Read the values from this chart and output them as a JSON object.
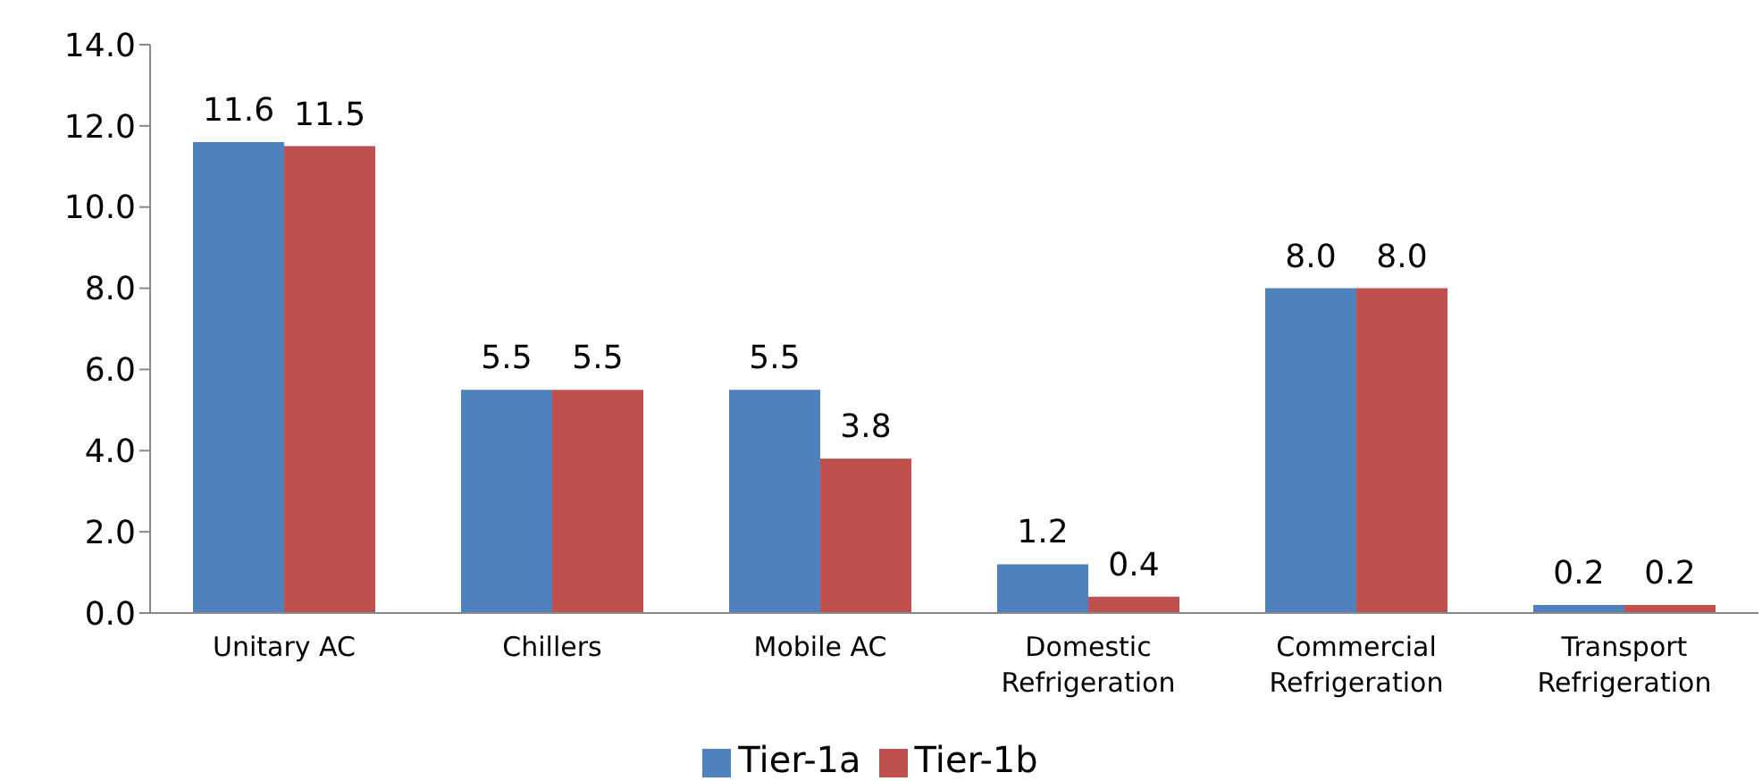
{
  "chart_data": {
    "type": "bar",
    "categories": [
      "Unitary AC",
      "Chillers",
      "Mobile AC",
      "Domestic Refrigeration",
      "Commercial Refrigeration",
      "Transport Refrigeration"
    ],
    "series": [
      {
        "name": "Tier-1a",
        "color": "#4f81bd",
        "values": [
          11.6,
          5.5,
          5.5,
          1.2,
          8.0,
          0.2
        ],
        "value_labels": [
          "11.6",
          "5.5",
          "5.5",
          "1.2",
          "8.0",
          "0.2"
        ]
      },
      {
        "name": "Tier-1b",
        "color": "#c0504d",
        "values": [
          11.5,
          5.5,
          3.8,
          0.4,
          8.0,
          0.2
        ],
        "value_labels": [
          "11.5",
          "5.5",
          "3.8",
          "0.4",
          "8.0",
          "0.2"
        ]
      }
    ],
    "ylim": [
      0,
      14
    ],
    "yticks": [
      {
        "value": 0,
        "label": "0.0"
      },
      {
        "value": 2,
        "label": "2.0"
      },
      {
        "value": 4,
        "label": "4.0"
      },
      {
        "value": 6,
        "label": "6.0"
      },
      {
        "value": 8,
        "label": "8.0"
      },
      {
        "value": 10,
        "label": "10.0"
      },
      {
        "value": 12,
        "label": "12.0"
      },
      {
        "value": 14,
        "label": "14.0"
      }
    ],
    "grid": false,
    "legend": "bottom"
  }
}
